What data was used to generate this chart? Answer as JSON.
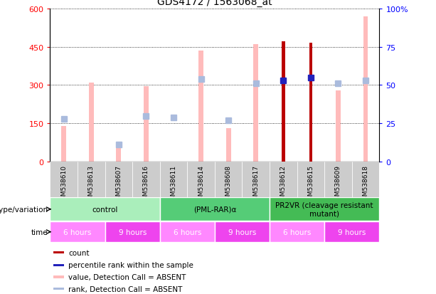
{
  "title": "GDS4172 / 1563068_at",
  "samples": [
    "GSM538610",
    "GSM538613",
    "GSM538607",
    "GSM538616",
    "GSM538611",
    "GSM538614",
    "GSM538608",
    "GSM538617",
    "GSM538612",
    "GSM538615",
    "GSM538609",
    "GSM538618"
  ],
  "count_values": [
    null,
    null,
    null,
    null,
    null,
    null,
    null,
    null,
    470,
    465,
    null,
    null
  ],
  "count_absent_values": [
    140,
    310,
    75,
    295,
    null,
    435,
    130,
    460,
    null,
    null,
    280,
    570
  ],
  "rank_values_raw": [
    null,
    null,
    null,
    null,
    null,
    null,
    null,
    null,
    53,
    55,
    null,
    null
  ],
  "rank_absent_values_raw": [
    28,
    null,
    11,
    30,
    29,
    54,
    27,
    51,
    null,
    null,
    51,
    53
  ],
  "ylim": [
    0,
    600
  ],
  "y2lim": [
    0,
    100
  ],
  "yticks": [
    0,
    150,
    300,
    450,
    600
  ],
  "ytick_labels": [
    "0",
    "150",
    "300",
    "450",
    "600"
  ],
  "y2ticks": [
    0,
    25,
    50,
    75,
    100
  ],
  "y2tick_labels": [
    "0",
    "25",
    "50",
    "75",
    "100%"
  ],
  "genotype_groups": [
    {
      "label": "control",
      "start": 0,
      "end": 4,
      "color": "#AAEEBB"
    },
    {
      "label": "(PML-RAR)α",
      "start": 4,
      "end": 8,
      "color": "#55CC77"
    },
    {
      "label": "PR2VR (cleavage resistant\nmutant)",
      "start": 8,
      "end": 12,
      "color": "#44BB55"
    }
  ],
  "time_groups": [
    {
      "label": "6 hours",
      "start": 0,
      "end": 2,
      "color": "#FF88FF"
    },
    {
      "label": "9 hours",
      "start": 2,
      "end": 4,
      "color": "#EE44EE"
    },
    {
      "label": "6 hours",
      "start": 4,
      "end": 6,
      "color": "#FF88FF"
    },
    {
      "label": "9 hours",
      "start": 6,
      "end": 8,
      "color": "#EE44EE"
    },
    {
      "label": "6 hours",
      "start": 8,
      "end": 10,
      "color": "#FF88FF"
    },
    {
      "label": "9 hours",
      "start": 10,
      "end": 12,
      "color": "#EE44EE"
    }
  ],
  "color_count": "#BB0000",
  "color_count_absent": "#FFBBBB",
  "color_rank": "#2222BB",
  "color_rank_absent": "#AABBDD",
  "legend_items": [
    {
      "label": "count",
      "color": "#BB0000"
    },
    {
      "label": "percentile rank within the sample",
      "color": "#2222BB"
    },
    {
      "label": "value, Detection Call = ABSENT",
      "color": "#FFBBBB"
    },
    {
      "label": "rank, Detection Call = ABSENT",
      "color": "#AABBDD"
    }
  ],
  "genotype_label": "genotype/variation",
  "time_label": "time"
}
